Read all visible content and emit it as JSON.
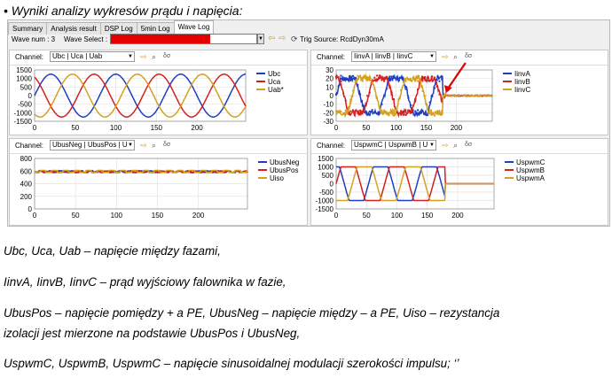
{
  "heading": "• Wyniki analizy wykresów prądu i napięcia:",
  "app": {
    "tabs": [
      "Summary",
      "Analysis result",
      "DSP Log",
      "5min Log",
      "Wave Log"
    ],
    "active_tab": 4,
    "wave_num_label": "Wave num : 3",
    "wave_select_label": "Wave Select :",
    "trig_source": "Trig Source: RcdDyn30mA"
  },
  "panels": [
    {
      "channel_label": "Channel:",
      "channel_value": "Ubc | Uca | Uab"
    },
    {
      "channel_label": "Channel:",
      "channel_value": "IinvA | IinvB | IinvC"
    },
    {
      "channel_label": "Channel:",
      "channel_value": "UbusNeg | UbusPos | U"
    },
    {
      "channel_label": "Channel:",
      "channel_value": "UspwmC | UspwmB | U"
    }
  ],
  "chart_data": [
    {
      "type": "line",
      "xlim": [
        0,
        260
      ],
      "ylim": [
        -1500,
        1500
      ],
      "x_ticks": [
        0,
        50,
        100,
        150,
        200
      ],
      "y_ticks": [
        "1500",
        "1000",
        "500",
        "0",
        "-500",
        "-1000",
        "-1500"
      ],
      "series": [
        {
          "name": "Ubc",
          "color": "#1f3fbf"
        },
        {
          "name": "Uca",
          "color": "#d42020"
        },
        {
          "name": "Uab*",
          "color": "#d4a020"
        }
      ],
      "shape": "3-phase sine, amplitude ~1250, period ~80 samples, 120° shift"
    },
    {
      "type": "line",
      "xlim": [
        0,
        260
      ],
      "ylim": [
        -30,
        30
      ],
      "x_ticks": [
        0,
        50,
        100,
        150,
        200
      ],
      "y_ticks": [
        "30",
        "20",
        "10",
        "0",
        "-10",
        "-20",
        "-30"
      ],
      "series": [
        {
          "name": "IinvA",
          "color": "#1f3fbf"
        },
        {
          "name": "IinvB",
          "color": "#d42020"
        },
        {
          "name": "IinvC",
          "color": "#d4a020"
        }
      ],
      "shape": "noisy 3-phase trapezoid currents amplitude ~20 until x≈180, then ~0"
    },
    {
      "type": "line",
      "xlim": [
        0,
        260
      ],
      "ylim": [
        0,
        800
      ],
      "x_ticks": [
        0,
        50,
        100,
        150,
        200
      ],
      "y_ticks": [
        "800",
        "600",
        "400",
        "200",
        "0"
      ],
      "series": [
        {
          "name": "UbusNeg",
          "color": "#1f3fbf"
        },
        {
          "name": "UbusPos",
          "color": "#d42020"
        },
        {
          "name": "Uiso",
          "color": "#d4a020"
        }
      ],
      "shape": "flat ~590 with small ripple"
    },
    {
      "type": "line",
      "xlim": [
        0,
        260
      ],
      "ylim": [
        -1500,
        1500
      ],
      "x_ticks": [
        0,
        50,
        100,
        150,
        200
      ],
      "y_ticks": [
        "1500",
        "1000",
        "500",
        "0",
        "-500",
        "-1000",
        "-1500"
      ],
      "series": [
        {
          "name": "UspwmC",
          "color": "#1f3fbf"
        },
        {
          "name": "UspwmB",
          "color": "#d42020"
        },
        {
          "name": "UspwmA",
          "color": "#d4a020"
        }
      ],
      "shape": "3-phase trapezoid amplitude ~1000 until x≈180, then flat 0"
    }
  ],
  "description": [
    "Ubc, Uca, Uab – napięcie między fazami,",
    "IinvA, IinvB, IinvC – prąd wyjściowy falownika w fazie,",
    "UbusPos – napięcie pomiędzy + a PE, UbusNeg – napięcie między – a PE, Uiso – rezystancja",
    "izolacji jest mierzone na podstawie UbusPos i UbusNeg,",
    "UspwmC, UspwmB, UspwmC – napięcie sinusoidalnej modulacji szerokości impulsu; ‘’"
  ],
  "colors": {
    "blue": "#1f3fbf",
    "red": "#d42020",
    "gold": "#d4a020",
    "arrow": "#e00000"
  }
}
